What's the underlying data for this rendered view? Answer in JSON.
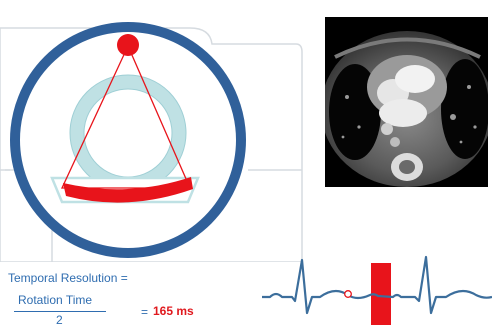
{
  "formula": {
    "label": "Temporal Resolution =",
    "numerator": "Rotation Time",
    "denominator": "2",
    "equals": "=",
    "result": "165 ms"
  },
  "colors": {
    "gantry_ring": "#30609a",
    "bore_ring": "#bfe1e4",
    "xray": "#e8141b",
    "text": "#2f6db0",
    "result": "#e0191e",
    "ecg_trace": "#3c6e9c"
  },
  "icons": {
    "xray_source": "red-circle",
    "detector": "red-arc",
    "ct_image": "cardiac-ct-slice",
    "ecg": "ecg-waveform"
  }
}
